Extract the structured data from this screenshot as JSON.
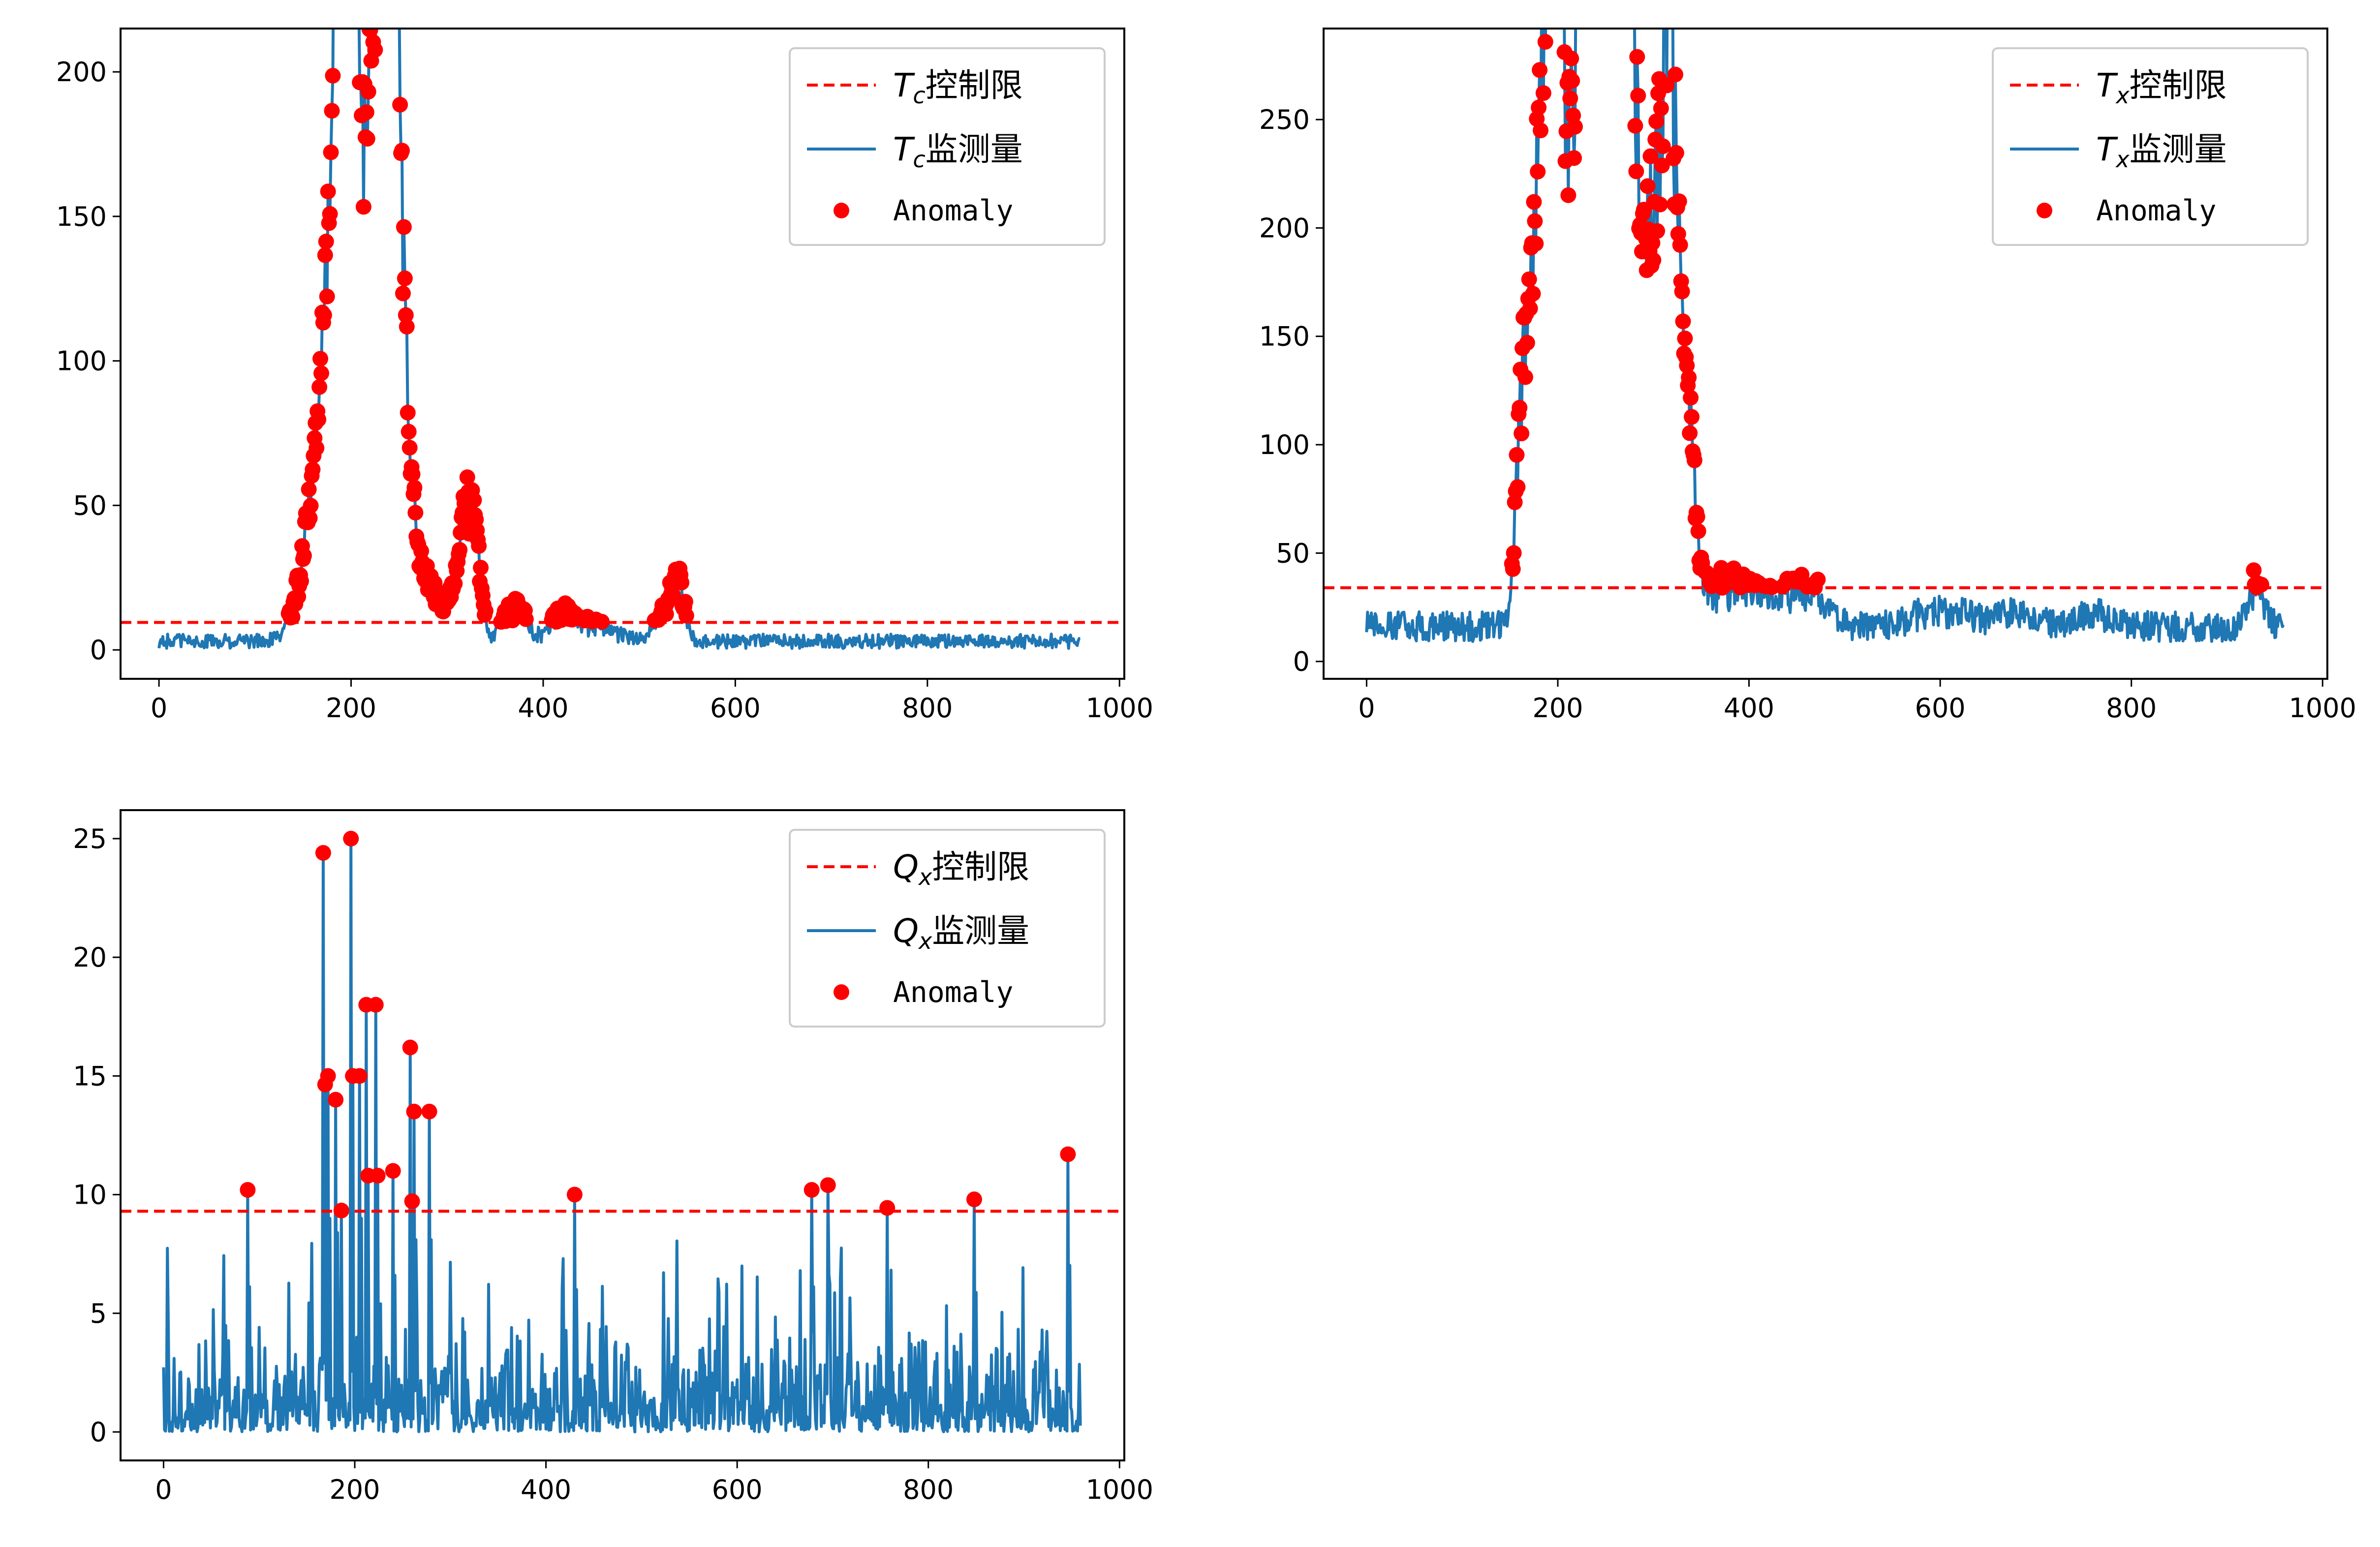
{
  "chart_data": [
    {
      "type": "line",
      "legend": {
        "placement": "top-right",
        "limit_label": "Tc控制限",
        "stat_label": "Tc监测量",
        "anomaly_label": "Anomaly",
        "symbol_main": "T",
        "symbol_sub": "c",
        "limit_suffix": "控制限",
        "stat_suffix": "监测量"
      },
      "control_limit": 9.5,
      "xlim": [
        -40,
        1005
      ],
      "ylim": [
        -10,
        215
      ],
      "xticks": [
        0,
        200,
        400,
        600,
        800,
        1000
      ],
      "yticks": [
        0,
        50,
        100,
        150,
        200
      ],
      "x_tick_labels": [
        "0",
        "200",
        "400",
        "600",
        "800",
        "1000"
      ],
      "y_tick_labels": [
        "0",
        "50",
        "100",
        "150",
        "200"
      ],
      "n_points": 960,
      "baseline": 3,
      "noise": 2.5,
      "series_peaks": [
        [
          160,
          15,
          30
        ],
        [
          172,
          12,
          35
        ],
        [
          180,
          10,
          55
        ],
        [
          188,
          8,
          130
        ],
        [
          195,
          7,
          165
        ],
        [
          201,
          6,
          140
        ],
        [
          210,
          8,
          70
        ],
        [
          220,
          7,
          120
        ],
        [
          230,
          7,
          150
        ],
        [
          240,
          7,
          200
        ],
        [
          248,
          6,
          120
        ],
        [
          258,
          8,
          40
        ],
        [
          270,
          15,
          20
        ],
        [
          300,
          15,
          10
        ],
        [
          320,
          8,
          40
        ],
        [
          330,
          6,
          20
        ],
        [
          370,
          12,
          12
        ],
        [
          420,
          10,
          8
        ],
        [
          450,
          25,
          5
        ],
        [
          530,
          12,
          10
        ],
        [
          540,
          6,
          16
        ]
      ],
      "series_lines": [
        {
          "name": "Tc监测量",
          "color": "#1f77b4"
        },
        {
          "name": "Tc控制限",
          "color": "#ff0000",
          "style": "dashed"
        }
      ],
      "anomaly_color": "#ff0000"
    },
    {
      "type": "line",
      "legend": {
        "placement": "top-right",
        "limit_label": "Tx控制限",
        "stat_label": "Tx监测量",
        "anomaly_label": "Anomaly",
        "symbol_main": "T",
        "symbol_sub": "x",
        "limit_suffix": "控制限",
        "stat_suffix": "监测量"
      },
      "control_limit": 34,
      "xlim": [
        -45,
        1005
      ],
      "ylim": [
        -8,
        292
      ],
      "xticks": [
        0,
        200,
        400,
        600,
        800,
        1000
      ],
      "yticks": [
        0,
        50,
        100,
        150,
        200,
        250
      ],
      "x_tick_labels": [
        "0",
        "200",
        "400",
        "600",
        "800",
        "1000"
      ],
      "y_tick_labels": [
        "0",
        "50",
        "100",
        "150",
        "200",
        "250"
      ],
      "n_points": 960,
      "baseline": 16,
      "noise": 7,
      "series_peaks": [
        [
          165,
          8,
          100
        ],
        [
          180,
          8,
          150
        ],
        [
          192,
          8,
          210
        ],
        [
          200,
          6,
          230
        ],
        [
          212,
          8,
          90
        ],
        [
          225,
          10,
          170
        ],
        [
          240,
          14,
          250
        ],
        [
          262,
          12,
          250
        ],
        [
          275,
          8,
          170
        ],
        [
          290,
          8,
          80
        ],
        [
          305,
          10,
          160
        ],
        [
          318,
          8,
          170
        ],
        [
          330,
          8,
          80
        ],
        [
          340,
          6,
          40
        ],
        [
          380,
          40,
          18
        ],
        [
          460,
          20,
          14
        ],
        [
          600,
          30,
          8
        ],
        [
          680,
          20,
          6
        ],
        [
          760,
          20,
          6
        ],
        [
          930,
          8,
          18
        ]
      ],
      "series_lines": [
        {
          "name": "Tx监测量",
          "color": "#1f77b4"
        },
        {
          "name": "Tx控制限",
          "color": "#ff0000",
          "style": "dashed"
        }
      ],
      "anomaly_color": "#ff0000"
    },
    {
      "type": "line",
      "legend": {
        "placement": "top-right",
        "limit_label": "Qx控制限",
        "stat_label": "Qx监测量",
        "anomaly_label": "Anomaly",
        "symbol_main": "Q",
        "symbol_sub": "x",
        "limit_suffix": "控制限",
        "stat_suffix": "监测量"
      },
      "control_limit": 9.3,
      "xlim": [
        -45,
        1005
      ],
      "ylim": [
        -1.2,
        26.2
      ],
      "xticks": [
        0,
        200,
        400,
        600,
        800,
        1000
      ],
      "yticks": [
        0,
        5,
        10,
        15,
        20,
        25
      ],
      "x_tick_labels": [
        "0",
        "200",
        "400",
        "600",
        "800",
        "1000"
      ],
      "y_tick_labels": [
        "0",
        "5",
        "10",
        "15",
        "20",
        "25"
      ],
      "n_points": 960,
      "baseline": 2.2,
      "noise": 2.4,
      "series_spikes": [
        [
          88,
          10.2
        ],
        [
          167,
          24.4
        ],
        [
          172,
          15
        ],
        [
          180,
          14
        ],
        [
          196,
          25
        ],
        [
          205,
          15
        ],
        [
          212,
          18
        ],
        [
          222,
          18
        ],
        [
          240,
          11
        ],
        [
          258,
          16.2
        ],
        [
          262,
          13.5
        ],
        [
          278,
          13.5
        ],
        [
          430,
          10
        ],
        [
          678,
          10.2
        ],
        [
          695,
          10.4
        ],
        [
          848,
          9.8
        ],
        [
          946,
          11.7
        ]
      ],
      "series_lines": [
        {
          "name": "Qx监测量",
          "color": "#1f77b4"
        },
        {
          "name": "Qx控制限",
          "color": "#ff0000",
          "style": "dashed"
        }
      ],
      "anomaly_color": "#ff0000"
    }
  ]
}
